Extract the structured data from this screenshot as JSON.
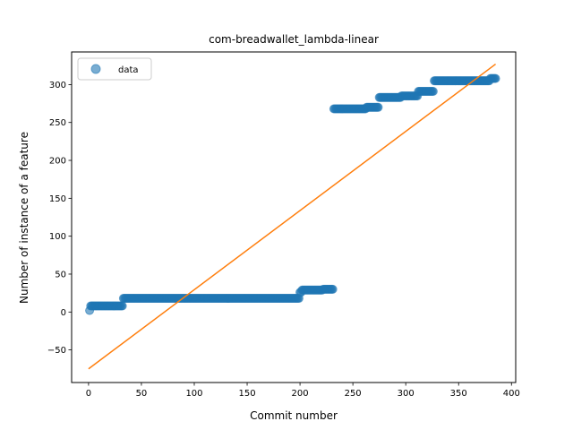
{
  "chart_data": {
    "type": "scatter",
    "title": "com-breadwallet_lambda-linear",
    "xlabel": "Commit number",
    "ylabel": "Number of instance of a feature",
    "xlim": [
      -16,
      404
    ],
    "ylim": [
      -93,
      343
    ],
    "xticks": [
      0,
      50,
      100,
      150,
      200,
      250,
      300,
      350,
      400
    ],
    "yticks": [
      -50,
      0,
      50,
      100,
      150,
      200,
      250,
      300
    ],
    "legend": {
      "position": "top-left",
      "entries": [
        "data"
      ]
    },
    "colors": {
      "data": "#1f77b4",
      "fit": "#ff7f0e"
    },
    "data_segments": [
      {
        "x_start": 1,
        "x_end": 1,
        "y": 2
      },
      {
        "x_start": 2,
        "x_end": 32,
        "y": 8
      },
      {
        "x_start": 33,
        "x_end": 199,
        "y": 18
      },
      {
        "x_start": 200,
        "x_end": 201,
        "y": 26
      },
      {
        "x_start": 202,
        "x_end": 221,
        "y": 29
      },
      {
        "x_start": 222,
        "x_end": 231,
        "y": 30
      },
      {
        "x_start": 232,
        "x_end": 262,
        "y": 268
      },
      {
        "x_start": 263,
        "x_end": 274,
        "y": 270
      },
      {
        "x_start": 275,
        "x_end": 295,
        "y": 283
      },
      {
        "x_start": 296,
        "x_end": 311,
        "y": 285
      },
      {
        "x_start": 312,
        "x_end": 326,
        "y": 291
      },
      {
        "x_start": 327,
        "x_end": 379,
        "y": 305
      },
      {
        "x_start": 380,
        "x_end": 385,
        "y": 308
      }
    ],
    "fit_line": {
      "x": [
        0,
        385
      ],
      "y": [
        -75,
        327
      ]
    }
  }
}
